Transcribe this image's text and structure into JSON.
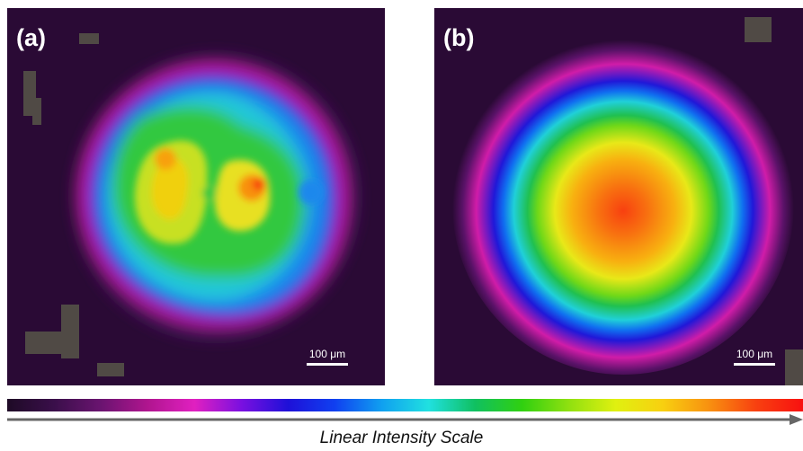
{
  "panels": [
    {
      "label": "(a)",
      "scalebar_label": "100 μm"
    },
    {
      "label": "(b)",
      "scalebar_label": "100 μm"
    }
  ],
  "intensity_scale": {
    "caption": "Linear Intensity Scale",
    "colors": [
      "#1e0a26",
      "#3a0f4a",
      "#6a1470",
      "#b0158f",
      "#e020c0",
      "#7a10e0",
      "#1e10d8",
      "#1040f0",
      "#10a0f0",
      "#20e0e0",
      "#10c060",
      "#30d010",
      "#90e010",
      "#e0f010",
      "#f8d010",
      "#f89010",
      "#f84010",
      "#f81010"
    ]
  }
}
